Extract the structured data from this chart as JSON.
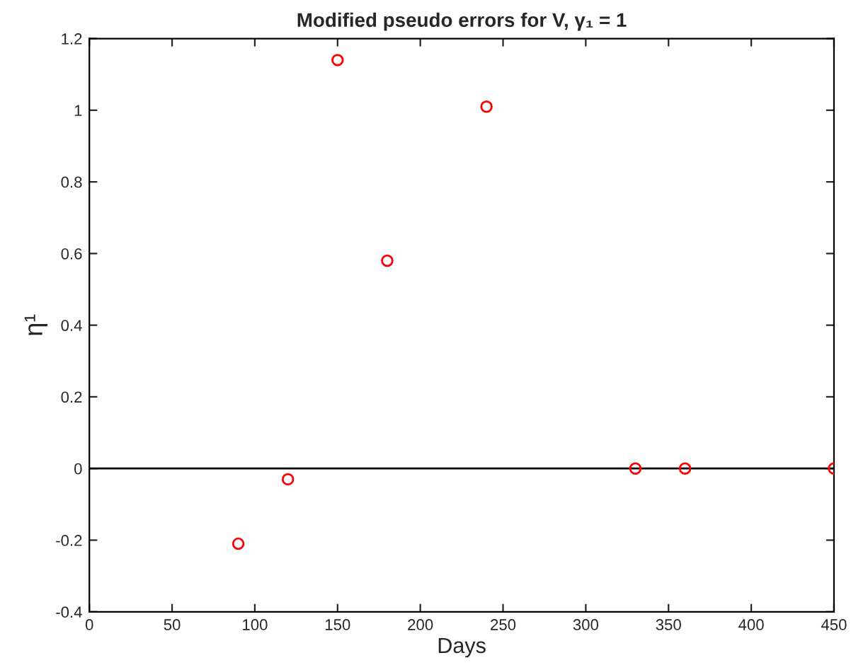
{
  "chart_data": {
    "type": "scatter",
    "title": "Modified pseudo errors for V, γ₁ = 1",
    "xlabel": "Days",
    "ylabel": "η¹",
    "x": [
      90,
      120,
      150,
      180,
      240,
      330,
      360,
      450
    ],
    "series": [
      {
        "color": "#ff0000",
        "values": [
          -0.21,
          -0.03,
          1.14,
          0.58,
          1.01,
          0,
          0,
          0
        ]
      }
    ],
    "marker": "circle",
    "grid": false,
    "legend": false,
    "xlim": [
      0,
      450
    ],
    "xticks": [
      0,
      50,
      100,
      150,
      200,
      250,
      300,
      350,
      400,
      450
    ],
    "ylim": [
      -0.4,
      1.2
    ],
    "yticks": [
      -0.4,
      -0.2,
      0,
      0.2,
      0.4,
      0.6,
      0.8,
      1,
      1.2
    ],
    "ref_lines": [
      {
        "axis": "y",
        "value": 0,
        "color": "#000000",
        "line_style": "solid"
      }
    ]
  }
}
